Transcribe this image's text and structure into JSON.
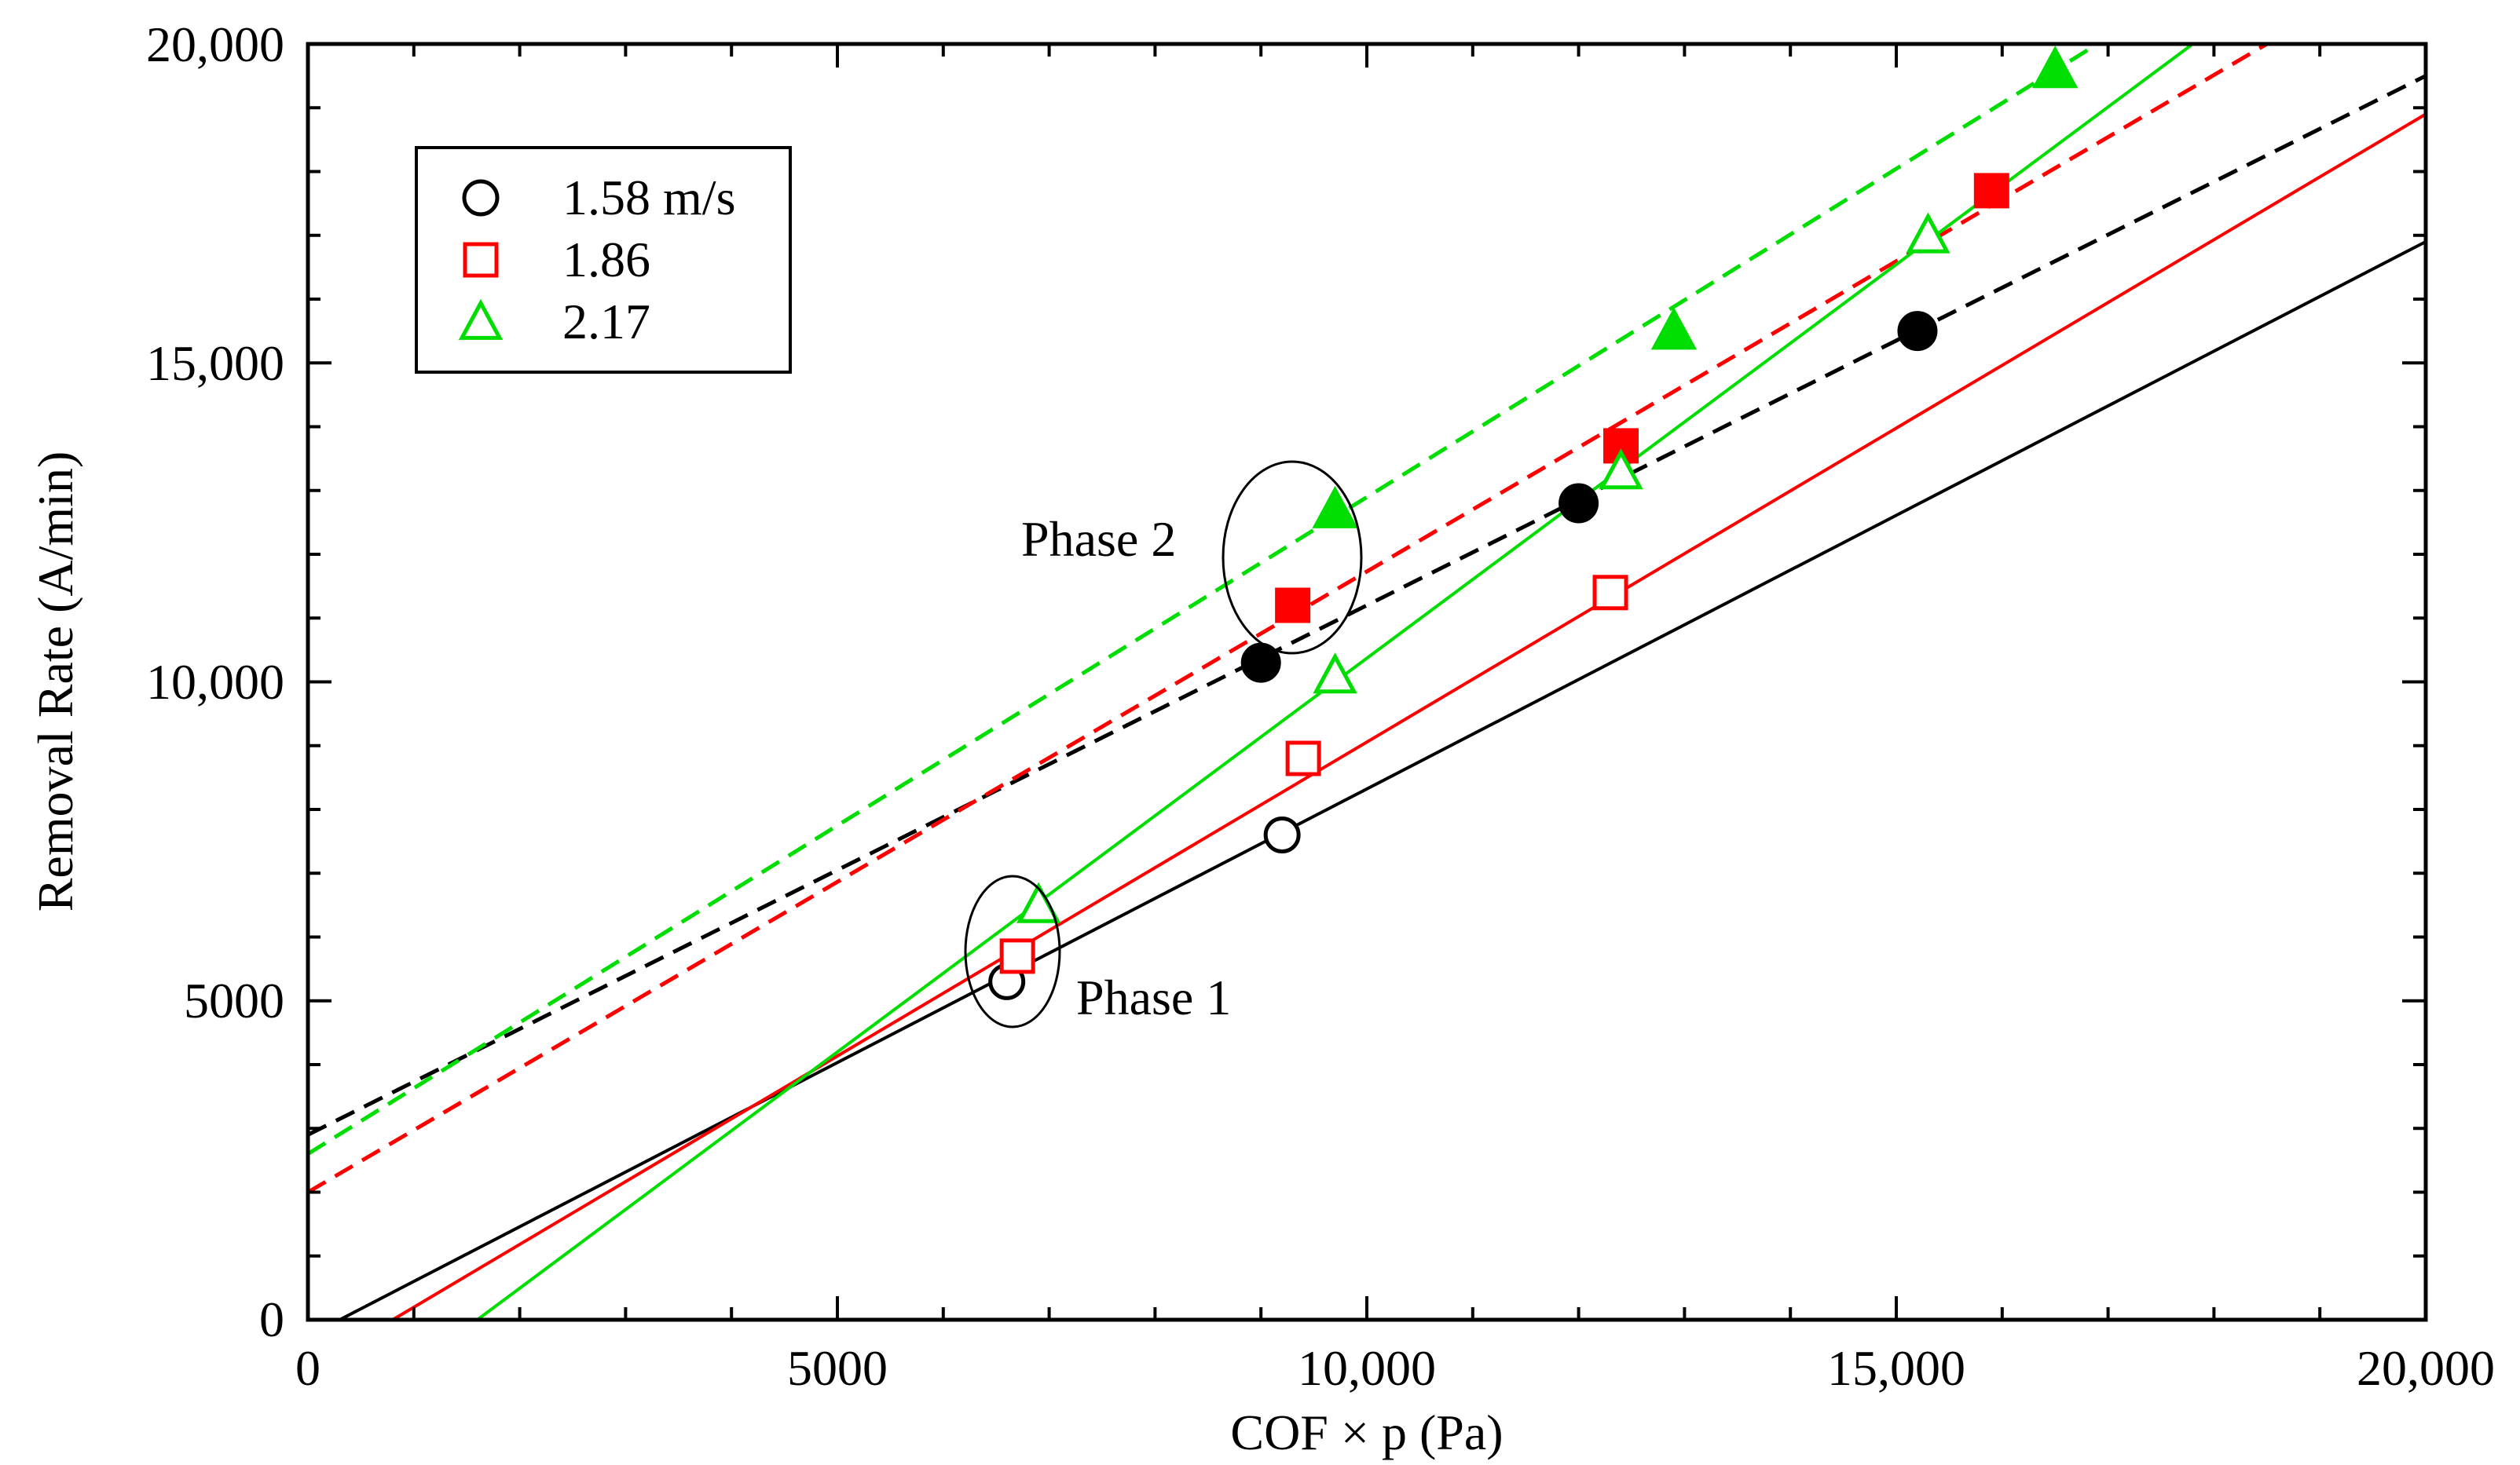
{
  "chart_data": {
    "type": "scatter",
    "title": "",
    "xlabel": "COF × p (Pa)",
    "ylabel": "Removal Rate (A/min)",
    "xlim": [
      0,
      20000
    ],
    "ylim": [
      0,
      20000
    ],
    "xticks": [
      0,
      5000,
      10000,
      15000,
      20000
    ],
    "xtick_labels": [
      "0",
      "5000",
      "10,000",
      "15,000",
      "20,000"
    ],
    "yticks": [
      0,
      5000,
      10000,
      15000,
      20000
    ],
    "ytick_labels": [
      "0",
      "5000",
      "10,000",
      "15,000",
      "20,000"
    ],
    "grid": false,
    "legend_position": "top-left",
    "series": [
      {
        "name": "1.58 m/s",
        "color": "#000000",
        "marker": "circle",
        "phase1_points": [
          [
            6600,
            5300
          ],
          [
            9200,
            7600
          ]
        ],
        "phase2_points": [
          [
            9000,
            10300
          ],
          [
            12000,
            12800
          ],
          [
            15200,
            15500
          ]
        ],
        "phase1_fit": [
          [
            300,
            0
          ],
          [
            20000,
            16900
          ]
        ],
        "phase2_fit": [
          [
            0,
            2900
          ],
          [
            20000,
            19500
          ]
        ]
      },
      {
        "name": "1.86",
        "color": "#ff0000",
        "marker": "square",
        "phase1_points": [
          [
            6700,
            5700
          ],
          [
            9400,
            8800
          ],
          [
            12300,
            11400
          ]
        ],
        "phase2_points": [
          [
            9300,
            11200
          ],
          [
            12400,
            13700
          ],
          [
            15900,
            17700
          ]
        ],
        "phase1_fit": [
          [
            800,
            0
          ],
          [
            20000,
            18900
          ]
        ],
        "phase2_fit": [
          [
            0,
            2000
          ],
          [
            18500,
            20000
          ]
        ]
      },
      {
        "name": "2.17",
        "color": "#00dd00",
        "marker": "triangle",
        "phase1_points": [
          [
            6900,
            6500
          ],
          [
            9700,
            10100
          ],
          [
            12400,
            13300
          ],
          [
            15300,
            17000
          ]
        ],
        "phase2_points": [
          [
            9700,
            12700
          ],
          [
            12900,
            15500
          ],
          [
            16500,
            19600
          ]
        ],
        "phase1_fit": [
          [
            1600,
            0
          ],
          [
            17800,
            20000
          ]
        ],
        "phase2_fit": [
          [
            0,
            2600
          ],
          [
            16900,
            20000
          ]
        ]
      }
    ],
    "annotations": [
      {
        "text": "Phase 1",
        "points_to": [
          6650,
          5700
        ]
      },
      {
        "text": "Phase 2",
        "points_to": [
          9350,
          11500
        ]
      }
    ]
  }
}
